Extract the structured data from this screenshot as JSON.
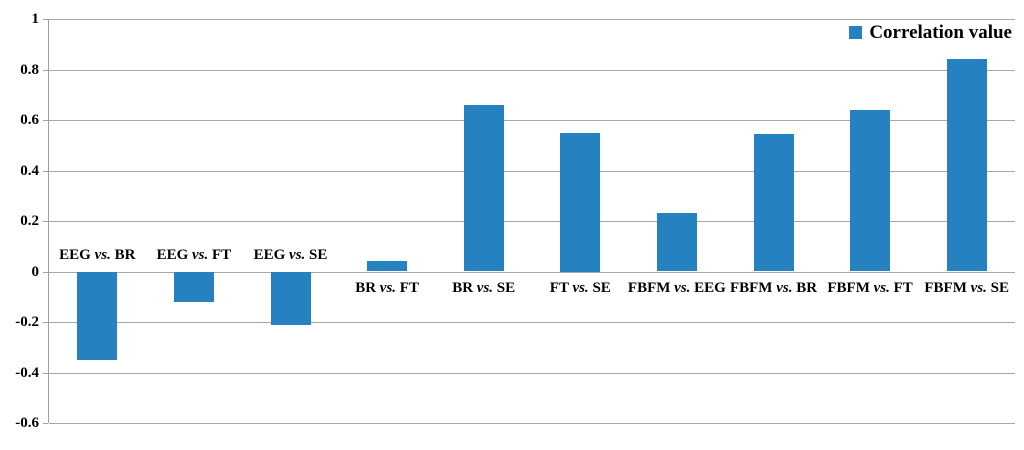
{
  "legend": {
    "label": "Correlation value"
  },
  "chart_data": {
    "type": "bar",
    "title": "",
    "xlabel": "",
    "ylabel": "",
    "categories": [
      "EEG vs. BR",
      "EEG vs. FT",
      "EEG vs. SE",
      "BR vs. FT",
      "BR vs. SE",
      "FT vs. SE",
      "FBFM vs. EEG",
      "FBFM vs. BR",
      "FBFM vs. FT",
      "FBFM vs. SE"
    ],
    "values": [
      -0.35,
      -0.12,
      -0.21,
      0.04,
      0.66,
      0.55,
      0.23,
      0.545,
      0.64,
      0.84
    ],
    "series_name": "Correlation value",
    "ylim": [
      -0.6,
      1
    ],
    "ytick_step": 0.2,
    "ytick_labels": [
      "1",
      "0.8",
      "0.6",
      "0.4",
      "0.2",
      "0",
      "-0.2",
      "-0.4",
      "-0.6"
    ],
    "grid": true,
    "legend_position": "top-right",
    "bar_color": "#2581BF",
    "gridline_color": "#A6A6A6",
    "axis_color": "#9E9E9E",
    "label_separator": "vs."
  }
}
